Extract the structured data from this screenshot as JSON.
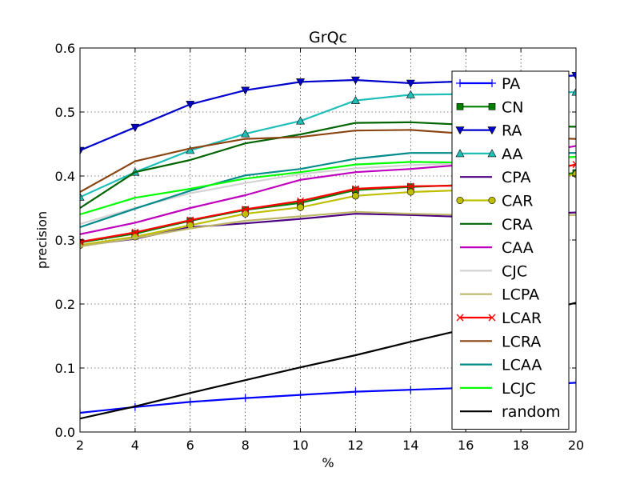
{
  "chart_data": {
    "type": "line",
    "title": "GrQc",
    "xlabel": "%",
    "ylabel": "precision",
    "xlim": [
      2,
      20
    ],
    "ylim": [
      0.0,
      0.6
    ],
    "xticks": [
      "2",
      "4",
      "6",
      "8",
      "10",
      "12",
      "14",
      "16",
      "18",
      "20"
    ],
    "yticks": [
      "0.0",
      "0.1",
      "0.2",
      "0.3",
      "0.4",
      "0.5",
      "0.6"
    ],
    "grid": true,
    "legend_position": "right",
    "x": [
      2,
      4,
      6,
      8,
      10,
      12,
      14,
      16,
      18,
      20
    ],
    "series": [
      {
        "name": "PA",
        "color": "#0000ff",
        "marker": "plus",
        "values": [
          0.03,
          0.039,
          0.047,
          0.053,
          0.058,
          0.063,
          0.066,
          0.069,
          0.072,
          0.077
        ]
      },
      {
        "name": "CN",
        "color": "#008000",
        "marker": "square",
        "values": [
          0.296,
          0.31,
          0.33,
          0.347,
          0.358,
          0.378,
          0.383,
          0.386,
          0.395,
          0.405
        ]
      },
      {
        "name": "RA",
        "color": "#0000cc",
        "marker": "triangle-down",
        "values": [
          0.44,
          0.476,
          0.512,
          0.534,
          0.547,
          0.55,
          0.545,
          0.548,
          0.553,
          0.557
        ]
      },
      {
        "name": "AA",
        "color": "#1fbfb8",
        "marker": "triangle-up",
        "values": [
          0.367,
          0.406,
          0.44,
          0.466,
          0.486,
          0.518,
          0.527,
          0.528,
          0.53,
          0.531
        ]
      },
      {
        "name": "CPA",
        "color": "#4b0082",
        "marker": "none",
        "values": [
          0.291,
          0.302,
          0.32,
          0.326,
          0.333,
          0.341,
          0.339,
          0.336,
          0.34,
          0.343
        ]
      },
      {
        "name": "CAR",
        "color": "#bfbf00",
        "marker": "circle",
        "values": [
          0.292,
          0.305,
          0.323,
          0.341,
          0.351,
          0.369,
          0.375,
          0.378,
          0.39,
          0.403
        ]
      },
      {
        "name": "CRA",
        "color": "#006400",
        "marker": "none",
        "values": [
          0.35,
          0.406,
          0.425,
          0.451,
          0.465,
          0.483,
          0.484,
          0.48,
          0.478,
          0.477
        ]
      },
      {
        "name": "CAA",
        "color": "#bf00bf",
        "marker": "none",
        "values": [
          0.309,
          0.327,
          0.35,
          0.37,
          0.394,
          0.406,
          0.411,
          0.418,
          0.432,
          0.447
        ]
      },
      {
        "name": "CJC",
        "color": "#d3d3d3",
        "marker": "none",
        "values": [
          0.325,
          0.35,
          0.373,
          0.389,
          0.403,
          0.412,
          0.417,
          0.42,
          0.425,
          0.43
        ]
      },
      {
        "name": "LCPA",
        "color": "#bdb76b",
        "marker": "none",
        "values": [
          0.29,
          0.303,
          0.318,
          0.33,
          0.337,
          0.344,
          0.341,
          0.339,
          0.339,
          0.339
        ]
      },
      {
        "name": "LCAR",
        "color": "#ff0000",
        "marker": "x",
        "values": [
          0.297,
          0.312,
          0.331,
          0.348,
          0.361,
          0.38,
          0.384,
          0.385,
          0.4,
          0.418
        ]
      },
      {
        "name": "LCRA",
        "color": "#8b4513",
        "marker": "none",
        "values": [
          0.375,
          0.423,
          0.443,
          0.458,
          0.461,
          0.471,
          0.472,
          0.466,
          0.461,
          0.458
        ]
      },
      {
        "name": "LCAA",
        "color": "#008b8b",
        "marker": "none",
        "values": [
          0.32,
          0.349,
          0.377,
          0.401,
          0.411,
          0.427,
          0.436,
          0.436,
          0.436,
          0.436
        ]
      },
      {
        "name": "LCJC",
        "color": "#00ff00",
        "marker": "none",
        "values": [
          0.34,
          0.366,
          0.38,
          0.396,
          0.406,
          0.418,
          0.422,
          0.421,
          0.425,
          0.43
        ]
      },
      {
        "name": "random",
        "color": "#000000",
        "marker": "none",
        "values": [
          0.021,
          0.04,
          0.061,
          0.081,
          0.101,
          0.12,
          0.141,
          0.161,
          0.181,
          0.202
        ]
      }
    ]
  }
}
